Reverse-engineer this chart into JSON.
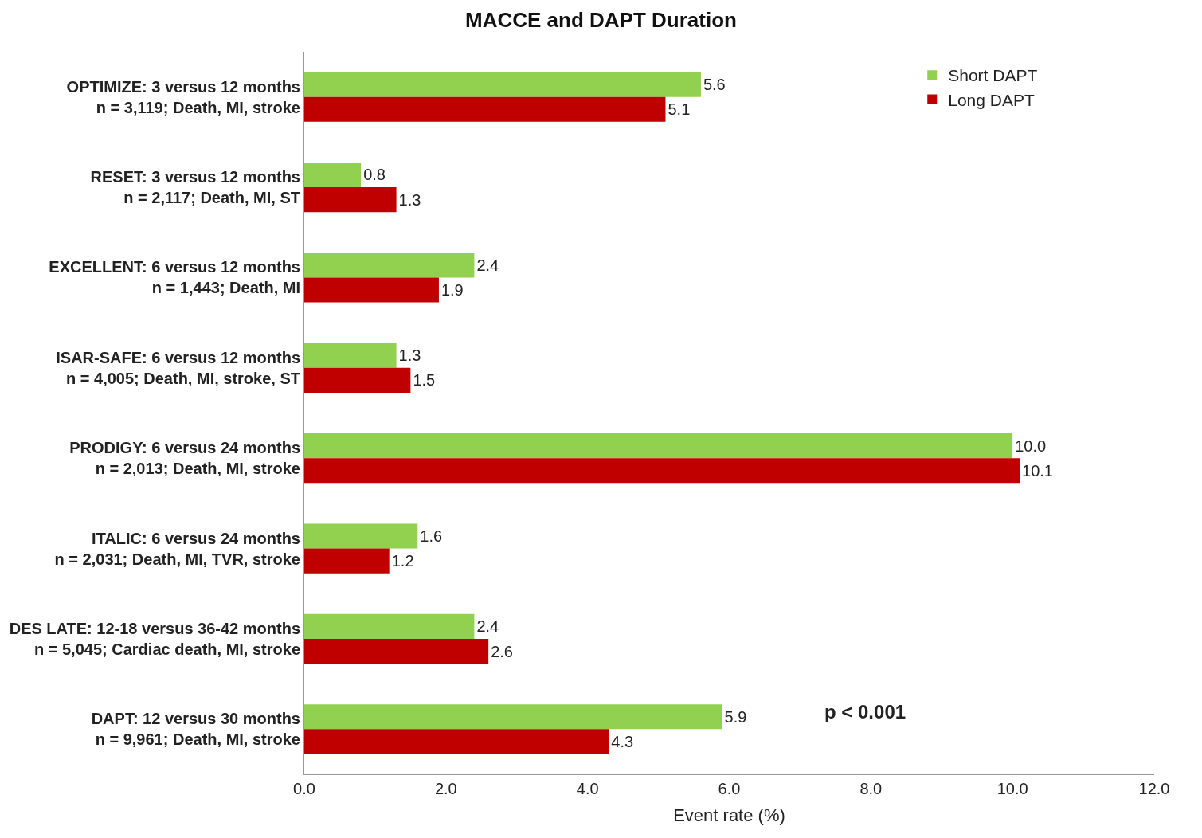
{
  "chart_data": {
    "type": "bar",
    "orientation": "horizontal",
    "title": "MACCE and DAPT Duration",
    "xlabel": "Event rate (%)",
    "categories": [
      "OPTIMIZE: 3 versus 12 months\nn = 3,119; Death, MI, stroke",
      "RESET: 3 versus 12 months\nn = 2,117; Death, MI, ST",
      "EXCELLENT: 6 versus 12 months\nn = 1,443; Death, MI",
      "ISAR-SAFE: 6 versus 12 months\nn = 4,005; Death, MI, stroke, ST",
      "PRODIGY: 6 versus 24 months\nn = 2,013; Death, MI, stroke",
      "ITALIC: 6 versus 24 months\nn = 2,031; Death, MI, TVR, stroke",
      "DES LATE: 12-18 versus 36-42 months\nn = 5,045; Cardiac death, MI, stroke",
      "DAPT: 12 versus 30 months\nn = 9,961; Death, MI, stroke"
    ],
    "series": [
      {
        "name": "Short DAPT",
        "color": "#92d050",
        "values": [
          5.6,
          0.8,
          2.4,
          1.3,
          10.0,
          1.6,
          2.4,
          5.9
        ],
        "value_labels": [
          "5.6",
          "0.8",
          "2.4",
          "1.3",
          "10.0",
          "1.6",
          "2.4",
          "5.9"
        ]
      },
      {
        "name": "Long DAPT",
        "color": "#c00000",
        "values": [
          5.1,
          1.3,
          1.9,
          1.5,
          10.1,
          1.2,
          2.6,
          4.3
        ],
        "value_labels": [
          "5.1",
          "1.3",
          "1.9",
          "1.5",
          "10.1",
          "1.2",
          "2.6",
          "4.3"
        ]
      }
    ],
    "xlim": [
      0,
      12
    ],
    "xticks": [
      {
        "value": 0,
        "label": "0.0"
      },
      {
        "value": 2,
        "label": "2.0"
      },
      {
        "value": 4,
        "label": "4.0"
      },
      {
        "value": 6,
        "label": "6.0"
      },
      {
        "value": 8,
        "label": "8.0"
      },
      {
        "value": 10,
        "label": "10.0"
      },
      {
        "value": 12,
        "label": "12.0"
      }
    ],
    "annotations": [
      "p < 0.001"
    ],
    "legend": "top right"
  }
}
